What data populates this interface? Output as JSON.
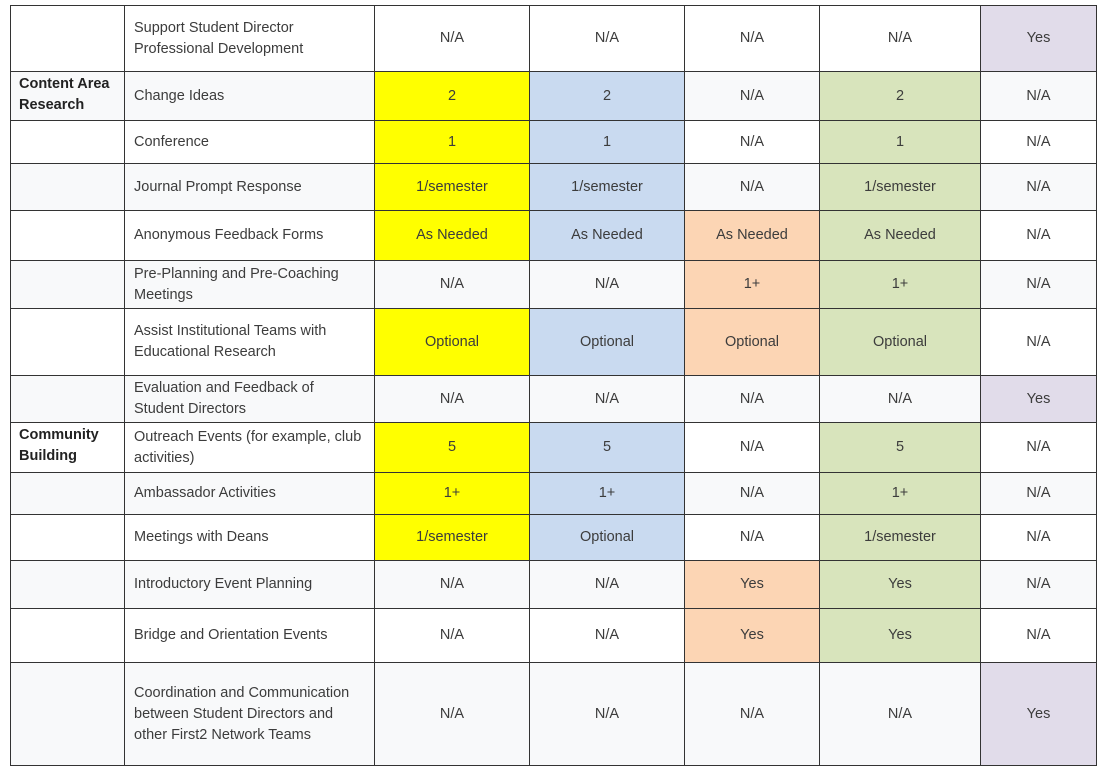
{
  "table": {
    "rows": [
      {
        "item": "Support Student Director Professional Development",
        "cells": [
          "N/A",
          "N/A",
          "N/A",
          "N/A",
          {
            "text": "Yes",
            "color": "#e1dcea"
          }
        ]
      },
      {
        "category": "Content Area Research",
        "item": "Change Ideas",
        "cells": [
          {
            "text": "2",
            "color": "#ffff00"
          },
          {
            "text": "2",
            "color": "#c9daf0"
          },
          "N/A",
          {
            "text": "2",
            "color": "#d8e4bc"
          },
          "N/A"
        ]
      },
      {
        "item": "Conference",
        "cells": [
          {
            "text": "1",
            "color": "#ffff00"
          },
          {
            "text": "1",
            "color": "#c9daf0"
          },
          "N/A",
          {
            "text": "1",
            "color": "#d8e4bc"
          },
          "N/A"
        ]
      },
      {
        "item": "Journal Prompt Response",
        "cells": [
          {
            "text": "1/semester",
            "color": "#ffff00"
          },
          {
            "text": "1/semester",
            "color": "#c9daf0"
          },
          "N/A",
          {
            "text": "1/semester",
            "color": "#d8e4bc"
          },
          "N/A"
        ]
      },
      {
        "item": "Anonymous Feedback Forms",
        "cells": [
          {
            "text": "As Needed",
            "color": "#ffff00"
          },
          {
            "text": "As Needed",
            "color": "#c9daf0"
          },
          {
            "text": "As Needed",
            "color": "#fcd5b4"
          },
          {
            "text": "As Needed",
            "color": "#d8e4bc"
          },
          "N/A"
        ]
      },
      {
        "item": "Pre-Planning and Pre-Coaching Meetings",
        "cells": [
          "N/A",
          "N/A",
          {
            "text": "1+",
            "color": "#fcd5b4"
          },
          {
            "text": "1+",
            "color": "#d8e4bc"
          },
          "N/A"
        ]
      },
      {
        "item": "Assist Institutional Teams with Educational Research",
        "cells": [
          {
            "text": "Optional",
            "color": "#ffff00"
          },
          {
            "text": "Optional",
            "color": "#c9daf0"
          },
          {
            "text": "Optional",
            "color": "#fcd5b4"
          },
          {
            "text": "Optional",
            "color": "#d8e4bc"
          },
          "N/A"
        ]
      },
      {
        "item": "Evaluation and Feedback of Student Directors",
        "cells": [
          "N/A",
          "N/A",
          "N/A",
          "N/A",
          {
            "text": "Yes",
            "color": "#e1dcea"
          }
        ]
      },
      {
        "category": "Community Building",
        "item": "Outreach Events (for example, club activities)",
        "cells": [
          {
            "text": "5",
            "color": "#ffff00"
          },
          {
            "text": "5",
            "color": "#c9daf0"
          },
          "N/A",
          {
            "text": "5",
            "color": "#d8e4bc"
          },
          "N/A"
        ]
      },
      {
        "item": "Ambassador Activities",
        "cells": [
          {
            "text": "1+",
            "color": "#ffff00"
          },
          {
            "text": "1+",
            "color": "#c9daf0"
          },
          "N/A",
          {
            "text": "1+",
            "color": "#d8e4bc"
          },
          "N/A"
        ]
      },
      {
        "item": "Meetings with Deans",
        "cells": [
          {
            "text": "1/semester",
            "color": "#ffff00"
          },
          {
            "text": "Optional",
            "color": "#c9daf0"
          },
          "N/A",
          {
            "text": "1/semester",
            "color": "#d8e4bc"
          },
          "N/A"
        ]
      },
      {
        "item": "Introductory Event Planning",
        "cells": [
          "N/A",
          "N/A",
          {
            "text": "Yes",
            "color": "#fcd5b4"
          },
          {
            "text": "Yes",
            "color": "#d8e4bc"
          },
          "N/A"
        ]
      },
      {
        "item": "Bridge and Orientation Events",
        "cells": [
          "N/A",
          "N/A",
          {
            "text": "Yes",
            "color": "#fcd5b4"
          },
          {
            "text": "Yes",
            "color": "#d8e4bc"
          },
          "N/A"
        ]
      },
      {
        "item": "Coordination and Communication between Student Directors and other First2 Network Teams",
        "cells": [
          "N/A",
          "N/A",
          "N/A",
          "N/A",
          {
            "text": "Yes",
            "color": "#e1dcea"
          }
        ]
      }
    ]
  }
}
